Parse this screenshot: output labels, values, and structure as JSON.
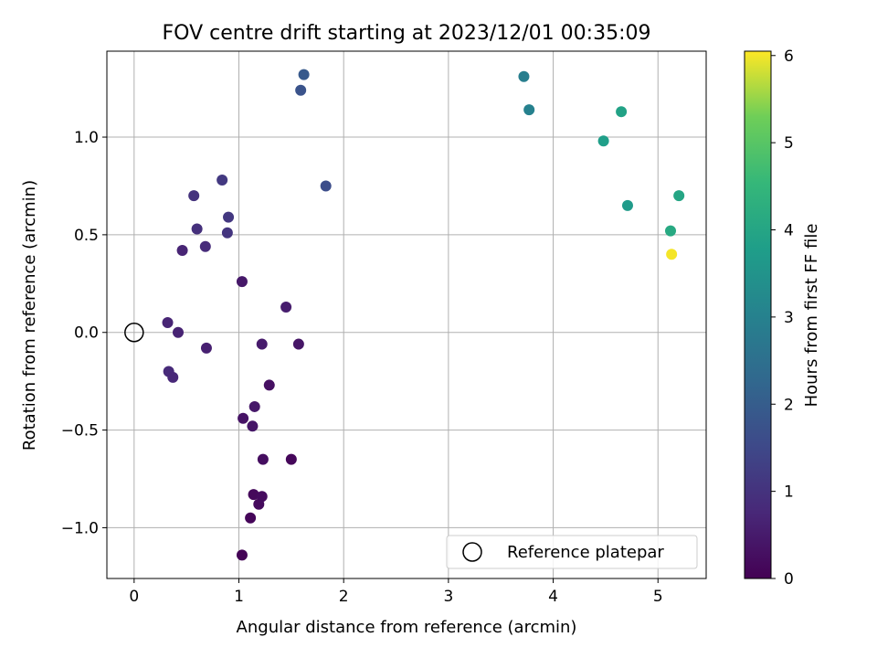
{
  "chart_data": {
    "type": "scatter",
    "title": "FOV centre drift starting at 2023/12/01 00:35:09",
    "xlabel": "Angular distance from reference (arcmin)",
    "ylabel": "Rotation from reference (arcmin)",
    "xlim": [
      -0.26,
      5.46
    ],
    "ylim": [
      -1.26,
      1.44
    ],
    "xticks": [
      0,
      1,
      2,
      3,
      4,
      5
    ],
    "xtick_labels": [
      "0",
      "1",
      "2",
      "3",
      "4",
      "5"
    ],
    "yticks": [
      -1.0,
      -0.5,
      0.0,
      0.5,
      1.0
    ],
    "ytick_labels": [
      "−1.0",
      "−0.5",
      "0.0",
      "0.5",
      "1.0"
    ],
    "grid": true,
    "colormap": "viridis",
    "colorbar": {
      "label": "Hours from first FF file",
      "range": [
        0,
        6.05
      ],
      "ticks": [
        0,
        1,
        2,
        3,
        4,
        5,
        6
      ],
      "tick_labels": [
        "0",
        "1",
        "2",
        "3",
        "4",
        "5",
        "6"
      ]
    },
    "points": [
      {
        "x": 1.03,
        "y": -1.14,
        "c": 0.05
      },
      {
        "x": 1.11,
        "y": -0.95,
        "c": 0.1
      },
      {
        "x": 1.14,
        "y": -0.83,
        "c": 0.15
      },
      {
        "x": 1.19,
        "y": -0.88,
        "c": 0.18
      },
      {
        "x": 1.22,
        "y": -0.84,
        "c": 0.2
      },
      {
        "x": 1.23,
        "y": -0.65,
        "c": 0.25
      },
      {
        "x": 1.5,
        "y": -0.65,
        "c": 0.12
      },
      {
        "x": 1.04,
        "y": -0.44,
        "c": 0.35
      },
      {
        "x": 1.13,
        "y": -0.48,
        "c": 0.4
      },
      {
        "x": 1.15,
        "y": -0.38,
        "c": 0.45
      },
      {
        "x": 1.29,
        "y": -0.27,
        "c": 0.3
      },
      {
        "x": 1.22,
        "y": -0.06,
        "c": 0.5
      },
      {
        "x": 1.57,
        "y": -0.06,
        "c": 0.4
      },
      {
        "x": 1.45,
        "y": 0.13,
        "c": 0.55
      },
      {
        "x": 1.03,
        "y": 0.26,
        "c": 0.45
      },
      {
        "x": 0.69,
        "y": -0.08,
        "c": 0.6
      },
      {
        "x": 0.33,
        "y": -0.2,
        "c": 0.8
      },
      {
        "x": 0.37,
        "y": -0.23,
        "c": 0.75
      },
      {
        "x": 0.32,
        "y": 0.05,
        "c": 0.7
      },
      {
        "x": 0.42,
        "y": 0.0,
        "c": 0.65
      },
      {
        "x": 0.46,
        "y": 0.42,
        "c": 0.7
      },
      {
        "x": 0.68,
        "y": 0.44,
        "c": 0.85
      },
      {
        "x": 0.6,
        "y": 0.53,
        "c": 0.95
      },
      {
        "x": 0.57,
        "y": 0.7,
        "c": 1.0
      },
      {
        "x": 0.89,
        "y": 0.51,
        "c": 1.05
      },
      {
        "x": 0.9,
        "y": 0.59,
        "c": 1.1
      },
      {
        "x": 0.84,
        "y": 0.78,
        "c": 1.15
      },
      {
        "x": 1.83,
        "y": 0.75,
        "c": 1.6
      },
      {
        "x": 1.59,
        "y": 1.24,
        "c": 1.75
      },
      {
        "x": 1.62,
        "y": 1.32,
        "c": 1.9
      },
      {
        "x": 3.72,
        "y": 1.31,
        "c": 2.9
      },
      {
        "x": 3.77,
        "y": 1.14,
        "c": 3.0
      },
      {
        "x": 4.48,
        "y": 0.98,
        "c": 3.8
      },
      {
        "x": 4.65,
        "y": 1.13,
        "c": 3.9
      },
      {
        "x": 4.71,
        "y": 0.65,
        "c": 3.7
      },
      {
        "x": 5.2,
        "y": 0.7,
        "c": 4.0
      },
      {
        "x": 5.12,
        "y": 0.52,
        "c": 4.1
      },
      {
        "x": 5.13,
        "y": 0.4,
        "c": 6.0
      }
    ],
    "reference": {
      "x": 0,
      "y": 0,
      "label": "Reference platepar"
    },
    "legend": {
      "placement": "lower-right",
      "entries": [
        "Reference platepar"
      ]
    }
  }
}
